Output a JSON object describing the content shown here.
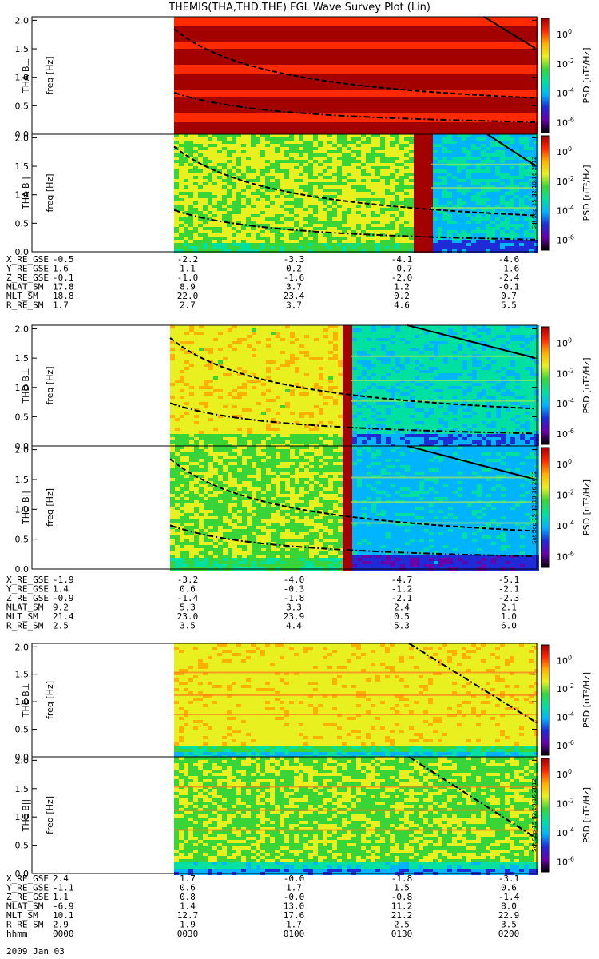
{
  "title": "THEMIS(THA,THD,THE) FGL Wave Survey Plot (Lin)",
  "colorbar": {
    "label": "PSD [nT²/Hz]",
    "ticks": [
      "10^0",
      "10^-2",
      "10^-4",
      "10^-6"
    ],
    "stops": [
      "#000000",
      "#6a00a8",
      "#1e2bd6",
      "#00b4ff",
      "#00e0a0",
      "#38d438",
      "#e8f020",
      "#ffb000",
      "#ff2a00",
      "#a30000"
    ]
  },
  "stamp": "Sat Sep 15 02:18:16 2012",
  "chart_data": {
    "type": "heatmap",
    "x_range_hhmm": [
      "0000",
      "0200"
    ],
    "y_range_hz": [
      0.0,
      2.0
    ],
    "yticks": [
      "0.0",
      "0.5",
      "1.0",
      "1.5",
      "2.0"
    ],
    "ylabel": "freq [Hz]",
    "panels": [
      {
        "probe": "THA",
        "component": "B⊥",
        "ylabel": "THA B⊥"
      },
      {
        "probe": "THA",
        "component": "B||",
        "ylabel": "THA B||"
      },
      {
        "probe": "THD",
        "component": "B⊥",
        "ylabel": "THD B⊥"
      },
      {
        "probe": "THD",
        "component": "B||",
        "ylabel": "THD B||"
      },
      {
        "probe": "THE",
        "component": "B⊥",
        "ylabel": "THE B⊥"
      },
      {
        "probe": "THE",
        "component": "B||",
        "ylabel": "THE B||"
      }
    ],
    "ephemeris": [
      {
        "probe": "THA",
        "rows": [
          {
            "label": "X_RE_GSE",
            "values": [
              "-0.5",
              "-2.2",
              "-3.3",
              "-4.1",
              "-4.6"
            ]
          },
          {
            "label": "Y_RE_GSE",
            "values": [
              "1.6",
              "1.1",
              "0.2",
              "-0.7",
              "-1.6"
            ]
          },
          {
            "label": "Z_RE_GSE",
            "values": [
              "-0.1",
              "-1.0",
              "-1.6",
              "-2.0",
              "-2.4"
            ]
          },
          {
            "label": "MLAT_SM",
            "values": [
              "17.8",
              "8.9",
              "3.7",
              "1.2",
              "-0.1"
            ]
          },
          {
            "label": "MLT_SM",
            "values": [
              "18.8",
              "22.0",
              "23.4",
              "0.2",
              "0.7"
            ]
          },
          {
            "label": "R_RE_SM",
            "values": [
              "1.7",
              "2.7",
              "3.7",
              "4.6",
              "5.5"
            ]
          }
        ]
      },
      {
        "probe": "THD",
        "rows": [
          {
            "label": "X_RE_GSE",
            "values": [
              "-1.9",
              "-3.2",
              "-4.0",
              "-4.7",
              "-5.1"
            ]
          },
          {
            "label": "Y_RE_GSE",
            "values": [
              "1.4",
              "0.6",
              "-0.3",
              "-1.2",
              "-2.1"
            ]
          },
          {
            "label": "Z_RE_GSE",
            "values": [
              "-0.9",
              "-1.4",
              "-1.8",
              "-2.1",
              "-2.3"
            ]
          },
          {
            "label": "MLAT_SM",
            "values": [
              "9.2",
              "5.3",
              "3.3",
              "2.4",
              "2.1"
            ]
          },
          {
            "label": "MLT_SM",
            "values": [
              "21.4",
              "23.0",
              "23.9",
              "0.5",
              "1.0"
            ]
          },
          {
            "label": "R_RE_SM",
            "values": [
              "2.5",
              "3.5",
              "4.4",
              "5.3",
              "6.0"
            ]
          }
        ]
      },
      {
        "probe": "THE",
        "rows": [
          {
            "label": "X_RE_GSE",
            "values": [
              "2.4",
              "1.7",
              "-0.0",
              "-1.8",
              "-3.1"
            ]
          },
          {
            "label": "Y_RE_GSE",
            "values": [
              "-1.1",
              "0.6",
              "1.7",
              "1.5",
              "0.6"
            ]
          },
          {
            "label": "Z_RE_GSE",
            "values": [
              "1.1",
              "0.8",
              "-0.0",
              "-0.8",
              "-1.4"
            ]
          },
          {
            "label": "MLAT_SM",
            "values": [
              "-6.9",
              "1.4",
              "13.0",
              "11.2",
              "8.0"
            ]
          },
          {
            "label": "MLT_SM",
            "values": [
              "10.1",
              "12.7",
              "17.6",
              "21.2",
              "22.9"
            ]
          },
          {
            "label": "R_RE_SM",
            "values": [
              "2.9",
              "1.9",
              "1.7",
              "2.5",
              "3.5"
            ]
          },
          {
            "label": "hhmm",
            "values": [
              "0000",
              "0030",
              "0100",
              "0130",
              "0200"
            ]
          }
        ]
      }
    ],
    "date_label": "2009 Jan 03"
  }
}
